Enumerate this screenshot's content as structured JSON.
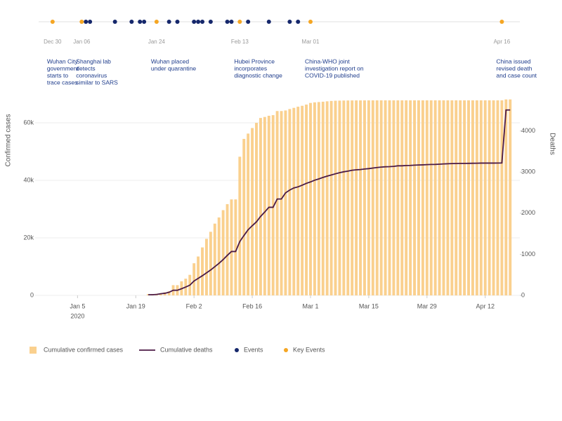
{
  "chart_data": {
    "type": "bar",
    "ylabel": "Confirmed cases",
    "y2label": "Deaths",
    "x": [
      "2020-01-22",
      "2020-01-23",
      "2020-01-24",
      "2020-01-25",
      "2020-01-26",
      "2020-01-27",
      "2020-01-28",
      "2020-01-29",
      "2020-01-30",
      "2020-01-31",
      "2020-02-01",
      "2020-02-02",
      "2020-02-03",
      "2020-02-04",
      "2020-02-05",
      "2020-02-06",
      "2020-02-07",
      "2020-02-08",
      "2020-02-09",
      "2020-02-10",
      "2020-02-11",
      "2020-02-12",
      "2020-02-13",
      "2020-02-14",
      "2020-02-15",
      "2020-02-16",
      "2020-02-17",
      "2020-02-18",
      "2020-02-19",
      "2020-02-20",
      "2020-02-21",
      "2020-02-22",
      "2020-02-23",
      "2020-02-24",
      "2020-02-25",
      "2020-02-26",
      "2020-02-27",
      "2020-02-28",
      "2020-02-29",
      "2020-03-01",
      "2020-03-02",
      "2020-03-03",
      "2020-03-04",
      "2020-03-05",
      "2020-03-06",
      "2020-03-07",
      "2020-03-08",
      "2020-03-09",
      "2020-03-10",
      "2020-03-11",
      "2020-03-12",
      "2020-03-13",
      "2020-03-14",
      "2020-03-15",
      "2020-03-16",
      "2020-03-17",
      "2020-03-18",
      "2020-03-19",
      "2020-03-20",
      "2020-03-21",
      "2020-03-22",
      "2020-03-23",
      "2020-03-24",
      "2020-03-25",
      "2020-03-26",
      "2020-03-27",
      "2020-03-28",
      "2020-03-29",
      "2020-03-30",
      "2020-03-31",
      "2020-04-01",
      "2020-04-02",
      "2020-04-03",
      "2020-04-04",
      "2020-04-05",
      "2020-04-06",
      "2020-04-07",
      "2020-04-08",
      "2020-04-09",
      "2020-04-10",
      "2020-04-11",
      "2020-04-12",
      "2020-04-13",
      "2020-04-14",
      "2020-04-15",
      "2020-04-16",
      "2020-04-17",
      "2020-04-18"
    ],
    "series": [
      {
        "name": "Cumulative confirmed cases",
        "type": "bar",
        "color": "#fad08e",
        "values": [
          444,
          444,
          549,
          761,
          1058,
          1423,
          3554,
          3554,
          4903,
          5806,
          7153,
          11177,
          13522,
          16678,
          19665,
          22112,
          24953,
          27100,
          29631,
          31728,
          33366,
          33366,
          48206,
          54406,
          56249,
          58182,
          59989,
          61682,
          62031,
          62442,
          62662,
          64084,
          64084,
          64287,
          64786,
          65187,
          65596,
          65914,
          66337,
          66907,
          67103,
          67217,
          67332,
          67466,
          67592,
          67666,
          67707,
          67743,
          67760,
          67773,
          67781,
          67786,
          67790,
          67794,
          67798,
          67799,
          67800,
          67800,
          67800,
          67800,
          67800,
          67800,
          67801,
          67801,
          67801,
          67801,
          67801,
          67801,
          67801,
          67801,
          67802,
          67802,
          67802,
          67803,
          67803,
          67803,
          67803,
          67803,
          67803,
          67803,
          67803,
          67803,
          67803,
          67803,
          67803,
          67803,
          68128,
          68128
        ]
      },
      {
        "name": "Cumulative deaths",
        "type": "line",
        "axis": "y2",
        "color": "#4b1a45",
        "values": [
          17,
          17,
          24,
          40,
          52,
          76,
          125,
          125,
          162,
          204,
          249,
          350,
          414,
          479,
          549,
          618,
          699,
          780,
          871,
          974,
          1068,
          1068,
          1310,
          1457,
          1596,
          1696,
          1789,
          1921,
          2029,
          2144,
          2144,
          2346,
          2346,
          2495,
          2563,
          2615,
          2641,
          2682,
          2727,
          2761,
          2803,
          2834,
          2871,
          2902,
          2931,
          2959,
          2986,
          3008,
          3024,
          3046,
          3056,
          3062,
          3075,
          3085,
          3099,
          3111,
          3122,
          3130,
          3133,
          3139,
          3153,
          3153,
          3160,
          3163,
          3169,
          3174,
          3177,
          3182,
          3186,
          3187,
          3193,
          3199,
          3203,
          3207,
          3210,
          3212,
          3212,
          3213,
          3215,
          3216,
          3219,
          3219,
          3219,
          3219,
          3221,
          3222,
          4512,
          4512
        ]
      }
    ],
    "xlim": [
      "2019-12-28",
      "2020-04-21"
    ],
    "xticks": [
      {
        "value": "2020-01-05",
        "label": "Jan 5"
      },
      {
        "value": "2020-01-19",
        "label": "Jan 19"
      },
      {
        "value": "2020-02-02",
        "label": "Feb 2"
      },
      {
        "value": "2020-02-16",
        "label": "Feb 16"
      },
      {
        "value": "2020-03-01",
        "label": "Mar 1"
      },
      {
        "value": "2020-03-15",
        "label": "Mar 15"
      },
      {
        "value": "2020-03-29",
        "label": "Mar 29"
      },
      {
        "value": "2020-04-12",
        "label": "Apr 12"
      }
    ],
    "xtick_year": "2020",
    "ylim": [
      0,
      70000
    ],
    "yticks": [
      0,
      {
        "value": 20000,
        "label": "20k"
      },
      {
        "value": 40000,
        "label": "40k"
      },
      {
        "value": 60000,
        "label": "60k"
      }
    ],
    "y2lim": [
      0,
      4900
    ],
    "y2ticks": [
      0,
      1000,
      2000,
      3000,
      4000
    ],
    "grid": true,
    "legend": "bottom-left",
    "events": {
      "name": "Events",
      "color": "#15276b",
      "dates": [
        "2020-01-07",
        "2020-01-08",
        "2020-01-14",
        "2020-01-18",
        "2020-01-20",
        "2020-01-21",
        "2020-01-27",
        "2020-01-29",
        "2020-02-02",
        "2020-02-03",
        "2020-02-04",
        "2020-02-06",
        "2020-02-10",
        "2020-02-11",
        "2020-02-15",
        "2020-02-20",
        "2020-02-25",
        "2020-02-27"
      ]
    },
    "key_events": {
      "name": "Key Events",
      "color": "#f5a623",
      "items": [
        {
          "date": "2019-12-30",
          "label": "Dec 30",
          "text": [
            "Wuhan City",
            "government",
            "starts to",
            "trace cases"
          ]
        },
        {
          "date": "2020-01-06",
          "label": "Jan 06",
          "text": [
            "Shanghai lab",
            "detects",
            "coronavirus",
            "similar to SARS"
          ]
        },
        {
          "date": "2020-01-24",
          "label": "Jan 24",
          "text": [
            "Wuhan placed",
            "under quarantine"
          ]
        },
        {
          "date": "2020-02-13",
          "label": "Feb 13",
          "text": [
            "Hubei Province",
            "incorporates",
            "diagnostic change"
          ]
        },
        {
          "date": "2020-03-01",
          "label": "Mar 01",
          "text": [
            "China-WHO joint",
            "investigation report on",
            "COVID-19 published"
          ]
        },
        {
          "date": "2020-04-16",
          "label": "Apr 16",
          "text": [
            "China issued",
            "revised death",
            "and case count"
          ]
        }
      ]
    }
  }
}
